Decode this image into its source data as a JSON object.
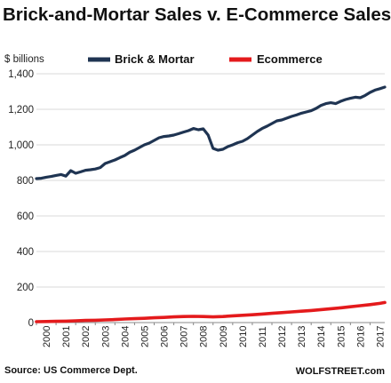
{
  "chart_data": {
    "type": "line",
    "title": "Brick-and-Mortar Sales v. E-Commerce Sales",
    "ylabel": "$ billions",
    "xlabel": "",
    "ylim": [
      0,
      1400
    ],
    "xlim": [
      2000,
      2017.75
    ],
    "grid": true,
    "legend_position": "top",
    "y_ticks": [
      "0",
      "200",
      "400",
      "600",
      "800",
      "1,000",
      "1,200",
      "1,400"
    ],
    "x_ticks": [
      "2000",
      "2001",
      "2002",
      "2003",
      "2004",
      "2005",
      "2006",
      "2007",
      "2008",
      "2009",
      "2010",
      "2011",
      "2012",
      "2013",
      "2014",
      "2015",
      "2016",
      "2017"
    ],
    "series": [
      {
        "name": "Brick & Mortar",
        "color": "#1f3452",
        "points": [
          [
            2000.0,
            810
          ],
          [
            2000.25,
            812
          ],
          [
            2000.5,
            818
          ],
          [
            2000.75,
            822
          ],
          [
            2001.0,
            828
          ],
          [
            2001.25,
            833
          ],
          [
            2001.5,
            824
          ],
          [
            2001.75,
            855
          ],
          [
            2002.0,
            840
          ],
          [
            2002.25,
            848
          ],
          [
            2002.5,
            857
          ],
          [
            2002.75,
            860
          ],
          [
            2003.0,
            864
          ],
          [
            2003.25,
            872
          ],
          [
            2003.5,
            895
          ],
          [
            2003.75,
            905
          ],
          [
            2004.0,
            915
          ],
          [
            2004.25,
            928
          ],
          [
            2004.5,
            940
          ],
          [
            2004.75,
            958
          ],
          [
            2005.0,
            970
          ],
          [
            2005.25,
            985
          ],
          [
            2005.5,
            1000
          ],
          [
            2005.75,
            1010
          ],
          [
            2006.0,
            1025
          ],
          [
            2006.25,
            1040
          ],
          [
            2006.5,
            1047
          ],
          [
            2006.75,
            1050
          ],
          [
            2007.0,
            1055
          ],
          [
            2007.25,
            1063
          ],
          [
            2007.5,
            1072
          ],
          [
            2007.75,
            1080
          ],
          [
            2008.0,
            1092
          ],
          [
            2008.25,
            1085
          ],
          [
            2008.5,
            1090
          ],
          [
            2008.75,
            1055
          ],
          [
            2009.0,
            980
          ],
          [
            2009.25,
            970
          ],
          [
            2009.5,
            975
          ],
          [
            2009.75,
            990
          ],
          [
            2010.0,
            1000
          ],
          [
            2010.25,
            1012
          ],
          [
            2010.5,
            1020
          ],
          [
            2010.75,
            1035
          ],
          [
            2011.0,
            1055
          ],
          [
            2011.25,
            1075
          ],
          [
            2011.5,
            1092
          ],
          [
            2011.75,
            1105
          ],
          [
            2012.0,
            1120
          ],
          [
            2012.25,
            1135
          ],
          [
            2012.5,
            1140
          ],
          [
            2012.75,
            1150
          ],
          [
            2013.0,
            1160
          ],
          [
            2013.25,
            1168
          ],
          [
            2013.5,
            1178
          ],
          [
            2013.75,
            1185
          ],
          [
            2014.0,
            1192
          ],
          [
            2014.25,
            1205
          ],
          [
            2014.5,
            1222
          ],
          [
            2014.75,
            1232
          ],
          [
            2015.0,
            1237
          ],
          [
            2015.25,
            1232
          ],
          [
            2015.5,
            1245
          ],
          [
            2015.75,
            1255
          ],
          [
            2016.0,
            1262
          ],
          [
            2016.25,
            1268
          ],
          [
            2016.5,
            1265
          ],
          [
            2016.75,
            1278
          ],
          [
            2017.0,
            1295
          ],
          [
            2017.25,
            1308
          ],
          [
            2017.5,
            1316
          ],
          [
            2017.75,
            1325
          ]
        ]
      },
      {
        "name": "Ecommerce",
        "color": "#e41a1c",
        "points": [
          [
            2000.0,
            5
          ],
          [
            2000.5,
            6
          ],
          [
            2001.0,
            7
          ],
          [
            2001.5,
            8
          ],
          [
            2002.0,
            10
          ],
          [
            2002.5,
            12
          ],
          [
            2003.0,
            13
          ],
          [
            2003.5,
            15
          ],
          [
            2004.0,
            17
          ],
          [
            2004.5,
            20
          ],
          [
            2005.0,
            22
          ],
          [
            2005.5,
            24
          ],
          [
            2006.0,
            27
          ],
          [
            2006.5,
            29
          ],
          [
            2007.0,
            32
          ],
          [
            2007.5,
            34
          ],
          [
            2008.0,
            35
          ],
          [
            2008.5,
            34
          ],
          [
            2009.0,
            32
          ],
          [
            2009.5,
            34
          ],
          [
            2010.0,
            38
          ],
          [
            2010.5,
            41
          ],
          [
            2011.0,
            44
          ],
          [
            2011.5,
            48
          ],
          [
            2012.0,
            52
          ],
          [
            2012.5,
            56
          ],
          [
            2013.0,
            60
          ],
          [
            2013.5,
            64
          ],
          [
            2014.0,
            68
          ],
          [
            2014.5,
            73
          ],
          [
            2015.0,
            78
          ],
          [
            2015.5,
            83
          ],
          [
            2016.0,
            89
          ],
          [
            2016.5,
            95
          ],
          [
            2017.0,
            101
          ],
          [
            2017.5,
            108
          ],
          [
            2017.75,
            113
          ]
        ]
      }
    ]
  },
  "footer": {
    "source": "Source: US Commerce Dept.",
    "credit": "WOLFSTREET.com"
  }
}
